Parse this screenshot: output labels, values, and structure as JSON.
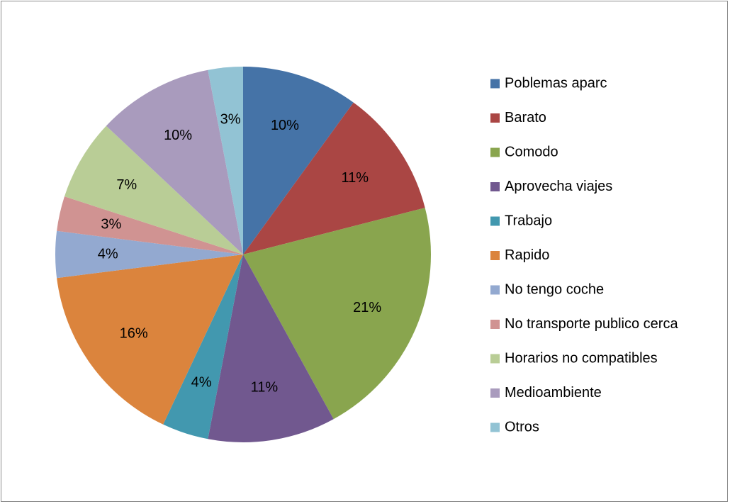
{
  "chart_data": {
    "type": "pie",
    "title": "",
    "legend_position": "right",
    "slices": [
      {
        "label": "Poblemas aparc",
        "value": 10,
        "display": "10%",
        "color": "#4573a7"
      },
      {
        "label": "Barato",
        "value": 11,
        "display": "11%",
        "color": "#aa4644"
      },
      {
        "label": "Comodo",
        "value": 21,
        "display": "21%",
        "color": "#89a54e"
      },
      {
        "label": "Aprovecha viajes",
        "value": 11,
        "display": "11%",
        "color": "#71588f"
      },
      {
        "label": "Trabajo",
        "value": 4,
        "display": "4%",
        "color": "#4298af"
      },
      {
        "label": "Rapido",
        "value": 16,
        "display": "16%",
        "color": "#db843d"
      },
      {
        "label": "No tengo coche",
        "value": 4,
        "display": "4%",
        "color": "#93a9d0"
      },
      {
        "label": "No transporte publico cerca",
        "value": 3,
        "display": "3%",
        "color": "#d09392"
      },
      {
        "label": "Horarios no compatibles",
        "value": 7,
        "display": "7%",
        "color": "#b9cd96"
      },
      {
        "label": "Medioambiente",
        "value": 10,
        "display": "10%",
        "color": "#a99bbd"
      },
      {
        "label": "Otros",
        "value": 3,
        "display": "3%",
        "color": "#92c3d4"
      }
    ]
  }
}
